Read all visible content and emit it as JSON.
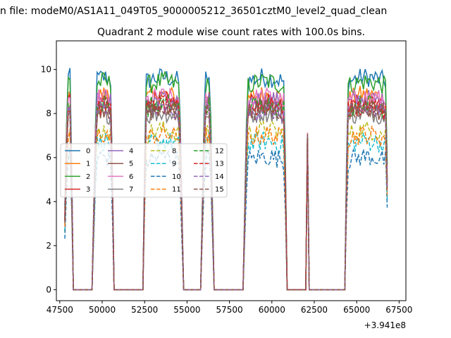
{
  "figure": {
    "suptitle": "n file: modeM0/AS1A11_049T05_9000005212_36501cztM0_level2_quad_clean",
    "offset_label": "+3.941e8"
  },
  "chart_data": {
    "type": "line",
    "title": "Quadrant 2 module wise count rates with 100.0s bins.",
    "xlabel": "",
    "ylabel": "",
    "x_offset": 394100000,
    "xlim": [
      47300,
      67900
    ],
    "ylim": [
      -0.5,
      11.3
    ],
    "xticks": [
      47500,
      50000,
      52500,
      55000,
      57500,
      60000,
      62500,
      65000,
      67500
    ],
    "yticks": [
      0,
      2,
      4,
      6,
      8,
      10
    ],
    "legend": {
      "placement": "center-left",
      "columns": 4
    },
    "segments": [
      {
        "start": 47800,
        "end": 48250,
        "width": "wide"
      },
      {
        "start": 49500,
        "end": 50650,
        "width": "wide"
      },
      {
        "start": 52450,
        "end": 54700,
        "width": "wide"
      },
      {
        "start": 55900,
        "end": 56500,
        "width": "wide"
      },
      {
        "start": 58400,
        "end": 60850,
        "width": "wide"
      },
      {
        "start": 62100,
        "end": 62150,
        "width": "spike"
      },
      {
        "start": 64350,
        "end": 66850,
        "width": "wide"
      }
    ],
    "series": [
      {
        "name": "0",
        "color": "#1f77b4",
        "style": "solid",
        "level": 9.4
      },
      {
        "name": "1",
        "color": "#ff7f0e",
        "style": "solid",
        "level": 8.6
      },
      {
        "name": "2",
        "color": "#2ca02c",
        "style": "solid",
        "level": 9.2
      },
      {
        "name": "3",
        "color": "#d62728",
        "style": "solid",
        "level": 8.3
      },
      {
        "name": "4",
        "color": "#9467bd",
        "style": "solid",
        "level": 8.4
      },
      {
        "name": "5",
        "color": "#8c564b",
        "style": "solid",
        "level": 8.0
      },
      {
        "name": "6",
        "color": "#e377c2",
        "style": "solid",
        "level": 8.5
      },
      {
        "name": "7",
        "color": "#7f7f7f",
        "style": "solid",
        "level": 7.8
      },
      {
        "name": "8",
        "color": "#bcbd22",
        "style": "dashed",
        "level": 7.0
      },
      {
        "name": "9",
        "color": "#17becf",
        "style": "dashed",
        "level": 6.5
      },
      {
        "name": "10",
        "color": "#1f77b4",
        "style": "dashed",
        "level": 5.8
      },
      {
        "name": "11",
        "color": "#ff7f0e",
        "style": "dashed",
        "level": 6.8
      },
      {
        "name": "12",
        "color": "#2ca02c",
        "style": "dashed",
        "level": 8.2
      },
      {
        "name": "13",
        "color": "#d62728",
        "style": "dashed",
        "level": 8.1
      },
      {
        "name": "14",
        "color": "#9467bd",
        "style": "dashed",
        "level": 7.9
      },
      {
        "name": "15",
        "color": "#8c564b",
        "style": "dashed",
        "level": 8.0
      }
    ]
  }
}
